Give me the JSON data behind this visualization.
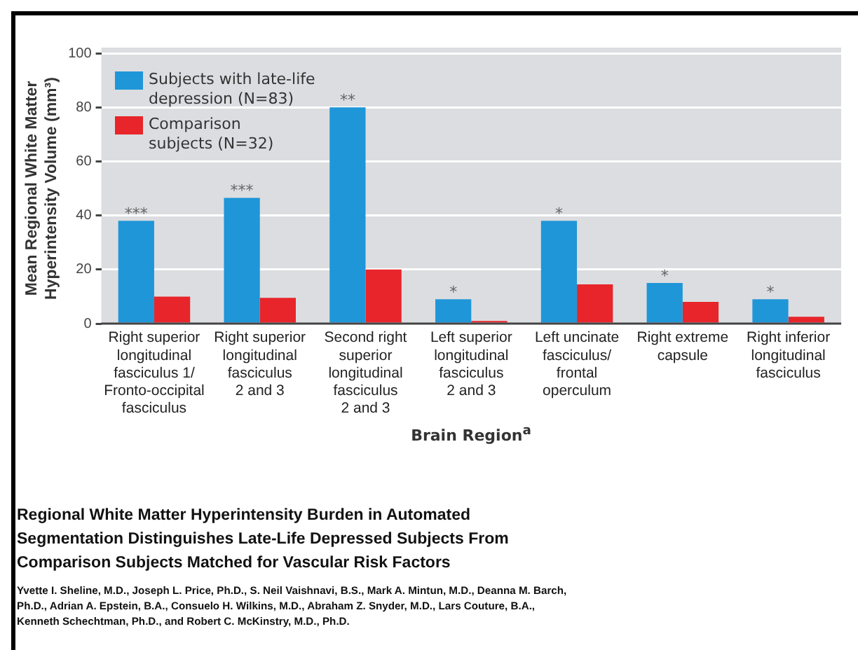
{
  "chart_data": {
    "type": "bar",
    "title": "Regional White Matter Hyperintensity Burden in Automated Segmentation Distinguishes Late-Life Depressed Subjects From Comparison Subjects Matched for Vascular Risk Factors",
    "xlabel": "Brain Region$^{a}$",
    "ylabel": "Mean Regional White Matter\nHyperintensity Volume (mm³)",
    "categories": [
      "Right superior\nlongitudinal\nfasciculus 1/\nFronto-occipital\nfasciculus",
      "Right superior\nlongitudinal\nfasciculus\n2 and 3",
      "Second right\nsuperior\nlongitudinal\nfasciculus\n2 and 3",
      "Left superior\nlongitudinal\nfasciculus\n2 and 3",
      "Left uncinate\nfasciculus/\nfrontal\noperculum",
      "Right extreme\ncapsule",
      "Right inferior\nlongitudinal\nfasciculus"
    ],
    "series": [
      {
        "name": "Subjects with late-life\ndepression (N=83)",
        "color": "#1f96d8",
        "values": [
          38,
          46.5,
          80,
          9,
          38,
          15,
          9
        ]
      },
      {
        "name": "Comparison\nsubjects (N=32)",
        "color": "#e8252a",
        "values": [
          10,
          9.5,
          20,
          1,
          14.5,
          8,
          2.5
        ]
      }
    ],
    "ylim": [
      0,
      100
    ],
    "yticks": [
      0,
      20,
      40,
      60,
      80,
      100
    ],
    "grid": "y",
    "legend": "top left",
    "annotations": [
      {
        "text": "***",
        "x": "Right superior\nlongitudinal\nfasciculus 1/\nFronto-occipital\nfasciculus",
        "y": 38
      },
      {
        "text": "***",
        "x": "Right superior\nlongitudinal\nfasciculus\n2 and 3",
        "y": 46.5
      },
      {
        "text": "**",
        "x": "Second right\nsuperior\nlongitudinal\nfasciculus\n2 and 3",
        "y": 80
      },
      {
        "text": "*",
        "x": "Left superior\nlongitudinal\nfasciculus\n2 and 3",
        "y": 9
      },
      {
        "text": "*",
        "x": "Left uncinate\nfasciculus/\nfrontal\noperculum",
        "y": 38
      },
      {
        "text": "*",
        "x": "Right extreme\ncapsule",
        "y": 15
      },
      {
        "text": "*",
        "x": "Right inferior\nlongitudinal\nfasciculus",
        "y": 9
      },
      "Yvette I. Sheline, M.D., Joseph L. Price, Ph.D., S. Neil Vaishnavi, B.S., Mark A. Mintun, M.D., Deanna M. Barch, Ph.D., Adrian A. Epstein, B.A., Consuelo H. Wilkins, M.D., Abraham Z. Snyder, M.D., Lars Couture, B.A., Kenneth Schechtman, Ph.D., and Robert C. McKinstry, M.D., Ph.D."
    ]
  }
}
